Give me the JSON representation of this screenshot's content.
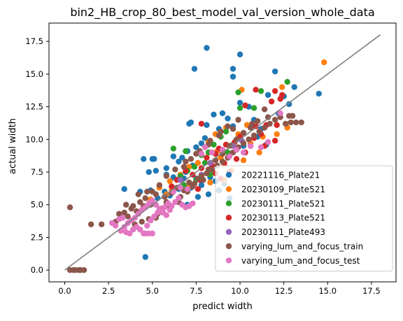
{
  "chart_data": {
    "type": "scatter",
    "title": "bin2_HB_crop_80_best_model_val_version_whole_data",
    "xlabel": "predict width",
    "ylabel": "actual width",
    "xlim": [
      -0.9,
      18.9
    ],
    "ylim": [
      -0.9,
      18.9
    ],
    "xticks": [
      0.0,
      2.5,
      5.0,
      7.5,
      10.0,
      12.5,
      15.0,
      17.5
    ],
    "yticks": [
      0.0,
      2.5,
      5.0,
      7.5,
      10.0,
      12.5,
      15.0,
      17.5
    ],
    "xtick_labels": [
      "0.0",
      "2.5",
      "5.0",
      "7.5",
      "10.0",
      "12.5",
      "15.0",
      "17.5"
    ],
    "ytick_labels": [
      "0.0",
      "2.5",
      "5.0",
      "7.5",
      "10.0",
      "12.5",
      "15.0",
      "17.5"
    ],
    "grid": false,
    "legend_position": "bottom-right",
    "reference_line": {
      "x": [
        0,
        18
      ],
      "y": [
        0,
        18
      ],
      "color": "#808080"
    },
    "series": [
      {
        "name": "20221116_Plate21",
        "color": "#1f77b4",
        "points": [
          [
            8.1,
            17.0
          ],
          [
            10.0,
            16.5
          ],
          [
            7.4,
            15.4
          ],
          [
            9.6,
            15.4
          ],
          [
            9.6,
            14.8
          ],
          [
            12.0,
            15.2
          ],
          [
            14.5,
            13.5
          ],
          [
            13.1,
            14.0
          ],
          [
            12.5,
            13.3
          ],
          [
            11.6,
            13.4
          ],
          [
            10.0,
            12.8
          ],
          [
            10.5,
            12.5
          ],
          [
            9.0,
            12.0
          ],
          [
            8.5,
            11.9
          ],
          [
            8.1,
            11.1
          ],
          [
            7.2,
            11.3
          ],
          [
            7.1,
            11.2
          ],
          [
            8.8,
            10.8
          ],
          [
            9.3,
            11.6
          ],
          [
            11.2,
            10.8
          ],
          [
            8.0,
            10.1
          ],
          [
            7.8,
            9.7
          ],
          [
            7.5,
            9.4
          ],
          [
            7.0,
            9.1
          ],
          [
            6.7,
            8.6
          ],
          [
            6.2,
            8.7
          ],
          [
            5.0,
            8.5
          ],
          [
            4.5,
            8.5
          ],
          [
            5.1,
            8.5
          ],
          [
            6.5,
            8.3
          ],
          [
            7.3,
            8.0
          ],
          [
            6.9,
            7.5
          ],
          [
            5.8,
            7.8
          ],
          [
            5.2,
            7.6
          ],
          [
            4.8,
            7.5
          ],
          [
            5.8,
            7.3
          ],
          [
            6.2,
            7.1
          ],
          [
            6.8,
            7.0
          ],
          [
            7.5,
            7.0
          ],
          [
            8.3,
            7.1
          ],
          [
            7.8,
            6.5
          ],
          [
            8.6,
            6.8
          ],
          [
            9.1,
            6.6
          ],
          [
            7.2,
            6.3
          ],
          [
            6.5,
            6.2
          ],
          [
            5.7,
            6.0
          ],
          [
            4.9,
            6.1
          ],
          [
            4.3,
            6.0
          ],
          [
            3.4,
            6.2
          ],
          [
            5.3,
            5.5
          ],
          [
            6.0,
            5.7
          ],
          [
            6.5,
            5.5
          ],
          [
            7.0,
            5.0
          ],
          [
            7.6,
            5.6
          ],
          [
            8.2,
            5.8
          ],
          [
            8.8,
            6.1
          ],
          [
            9.4,
            5.5
          ],
          [
            4.6,
            1.0
          ],
          [
            10.2,
            9.5
          ],
          [
            11.0,
            10.2
          ],
          [
            11.5,
            9.6
          ],
          [
            12.2,
            12.0
          ],
          [
            12.8,
            12.7
          ],
          [
            9.6,
            11.0
          ],
          [
            10.8,
            11.5
          ]
        ]
      },
      {
        "name": "20230109_Plate521",
        "color": "#ff7f0e",
        "points": [
          [
            14.8,
            15.9
          ],
          [
            12.4,
            14.0
          ],
          [
            10.1,
            13.8
          ],
          [
            9.2,
            10.9
          ],
          [
            10.4,
            11.1
          ],
          [
            11.3,
            10.2
          ],
          [
            12.1,
            10.4
          ],
          [
            12.7,
            10.9
          ],
          [
            9.9,
            10.4
          ],
          [
            9.6,
            9.6
          ],
          [
            8.7,
            9.1
          ],
          [
            8.2,
            9.8
          ],
          [
            8.9,
            8.6
          ],
          [
            9.1,
            8.1
          ],
          [
            10.2,
            8.4
          ],
          [
            11.1,
            9.0
          ],
          [
            7.6,
            8.2
          ],
          [
            7.1,
            7.9
          ],
          [
            6.6,
            7.3
          ],
          [
            7.1,
            6.4
          ],
          [
            8.3,
            6.7
          ],
          [
            9.1,
            6.9
          ],
          [
            6.0,
            6.8
          ],
          [
            5.4,
            6.3
          ],
          [
            6.1,
            6.1
          ],
          [
            5.8,
            5.8
          ],
          [
            4.9,
            5.4
          ],
          [
            9.5,
            7.6
          ],
          [
            10.6,
            9.7
          ],
          [
            8.6,
            10.4
          ]
        ]
      },
      {
        "name": "20230111_Plate521",
        "color": "#2ca02c",
        "points": [
          [
            12.7,
            14.4
          ],
          [
            11.2,
            13.7
          ],
          [
            9.9,
            13.6
          ],
          [
            10.0,
            12.4
          ],
          [
            10.8,
            12.4
          ],
          [
            9.2,
            10.6
          ],
          [
            8.9,
            10.2
          ],
          [
            8.5,
            9.6
          ],
          [
            9.6,
            9.6
          ],
          [
            9.3,
            9.0
          ],
          [
            8.2,
            9.0
          ],
          [
            6.9,
            9.1
          ],
          [
            6.2,
            9.3
          ],
          [
            7.8,
            8.8
          ],
          [
            8.0,
            8.2
          ],
          [
            7.4,
            7.9
          ],
          [
            7.0,
            7.6
          ],
          [
            6.6,
            7.2
          ],
          [
            7.5,
            6.9
          ],
          [
            6.8,
            6.5
          ],
          [
            8.3,
            7.3
          ]
        ]
      },
      {
        "name": "20230113_Plate521",
        "color": "#d62728",
        "points": [
          [
            12.0,
            13.7
          ],
          [
            10.9,
            13.8
          ],
          [
            12.3,
            13.1
          ],
          [
            11.8,
            12.9
          ],
          [
            12.4,
            13.4
          ],
          [
            10.3,
            12.6
          ],
          [
            10.9,
            11.0
          ],
          [
            11.5,
            11.1
          ],
          [
            12.1,
            11.1
          ],
          [
            10.0,
            10.2
          ],
          [
            10.8,
            10.1
          ],
          [
            11.2,
            10.4
          ],
          [
            9.7,
            9.8
          ],
          [
            9.2,
            9.6
          ],
          [
            8.8,
            9.3
          ],
          [
            10.6,
            9.5
          ],
          [
            11.4,
            9.5
          ],
          [
            12.0,
            9.9
          ],
          [
            8.6,
            8.9
          ],
          [
            8.1,
            8.6
          ],
          [
            9.1,
            8.2
          ],
          [
            9.8,
            8.5
          ],
          [
            10.3,
            9.0
          ],
          [
            8.4,
            8.0
          ],
          [
            7.8,
            7.8
          ],
          [
            8.6,
            7.4
          ],
          [
            7.3,
            7.3
          ],
          [
            6.9,
            7.6
          ],
          [
            7.7,
            6.9
          ],
          [
            6.4,
            6.9
          ],
          [
            7.6,
            6.2
          ],
          [
            6.1,
            6.4
          ],
          [
            8.9,
            7.0
          ],
          [
            9.4,
            7.5
          ],
          [
            7.8,
            11.2
          ]
        ]
      },
      {
        "name": "20230111_Plate493",
        "color": "#9467bd",
        "points": [
          [
            8.3,
            8.2
          ],
          [
            9.6,
            9.5
          ],
          [
            7.8,
            7.3
          ],
          [
            10.1,
            9.9
          ],
          [
            6.6,
            6.9
          ]
        ]
      },
      {
        "name": "varying_lum_and_focus_train",
        "color": "#8c564b",
        "points": [
          [
            0.3,
            4.8
          ],
          [
            0.3,
            0.0
          ],
          [
            0.6,
            0.0
          ],
          [
            0.9,
            0.0
          ],
          [
            1.1,
            0.0
          ],
          [
            0.5,
            0.0
          ],
          [
            0.8,
            0.0
          ],
          [
            1.5,
            3.5
          ],
          [
            2.1,
            3.5
          ],
          [
            2.9,
            3.7
          ],
          [
            3.4,
            4.4
          ],
          [
            3.6,
            4.1
          ],
          [
            3.8,
            4.7
          ],
          [
            4.1,
            4.5
          ],
          [
            4.5,
            4.9
          ],
          [
            4.9,
            5.0
          ],
          [
            5.3,
            4.3
          ],
          [
            5.5,
            4.7
          ],
          [
            5.8,
            5.2
          ],
          [
            4.0,
            3.5
          ],
          [
            4.4,
            3.7
          ],
          [
            3.1,
            4.3
          ],
          [
            4.7,
            6.0
          ],
          [
            5.2,
            5.8
          ],
          [
            5.7,
            5.6
          ],
          [
            6.1,
            5.9
          ],
          [
            6.4,
            6.3
          ],
          [
            6.8,
            6.1
          ],
          [
            7.1,
            6.7
          ],
          [
            7.3,
            6.4
          ],
          [
            7.6,
            7.0
          ],
          [
            7.9,
            6.9
          ],
          [
            8.1,
            7.4
          ],
          [
            8.4,
            7.7
          ],
          [
            8.7,
            8.0
          ],
          [
            9.0,
            8.3
          ],
          [
            9.3,
            8.6
          ],
          [
            9.6,
            9.0
          ],
          [
            9.9,
            9.4
          ],
          [
            10.2,
            9.7
          ],
          [
            10.5,
            10.0
          ],
          [
            10.8,
            10.3
          ],
          [
            11.1,
            10.6
          ],
          [
            11.4,
            10.9
          ],
          [
            11.7,
            11.2
          ],
          [
            12.0,
            11.5
          ],
          [
            12.3,
            11.7
          ],
          [
            12.6,
            11.2
          ],
          [
            12.9,
            11.3
          ],
          [
            13.2,
            11.3
          ],
          [
            13.5,
            11.3
          ],
          [
            12.8,
            11.8
          ],
          [
            11.6,
            11.7
          ],
          [
            10.7,
            11.2
          ],
          [
            9.6,
            10.8
          ],
          [
            8.8,
            10.3
          ],
          [
            8.2,
            9.6
          ],
          [
            7.5,
            8.9
          ],
          [
            6.9,
            8.3
          ],
          [
            6.3,
            7.7
          ],
          [
            5.8,
            7.2
          ],
          [
            5.4,
            6.5
          ],
          [
            5.0,
            6.0
          ],
          [
            4.6,
            5.5
          ],
          [
            4.3,
            5.2
          ],
          [
            3.9,
            4.9
          ],
          [
            6.6,
            5.6
          ],
          [
            7.0,
            6.0
          ],
          [
            7.4,
            6.6
          ],
          [
            7.8,
            7.2
          ],
          [
            8.2,
            7.7
          ],
          [
            8.6,
            8.4
          ],
          [
            9.0,
            8.9
          ],
          [
            9.4,
            9.5
          ],
          [
            9.8,
            10.0
          ],
          [
            10.2,
            10.5
          ],
          [
            10.6,
            10.9
          ],
          [
            11.0,
            11.4
          ],
          [
            6.0,
            4.9
          ],
          [
            6.5,
            5.2
          ],
          [
            5.6,
            4.4
          ],
          [
            4.8,
            3.9
          ],
          [
            5.2,
            4.0
          ],
          [
            3.5,
            5.0
          ],
          [
            4.2,
            5.8
          ],
          [
            6.8,
            7.9
          ],
          [
            7.2,
            8.5
          ],
          [
            7.7,
            9.1
          ],
          [
            8.3,
            9.9
          ],
          [
            8.9,
            10.6
          ],
          [
            9.3,
            11.0
          ],
          [
            9.9,
            11.5
          ],
          [
            11.4,
            12.3
          ],
          [
            13.0,
            11.8
          ]
        ]
      },
      {
        "name": "varying_lum_and_focus_test",
        "color": "#e377c2",
        "points": [
          [
            2.7,
            3.6
          ],
          [
            3.1,
            3.9
          ],
          [
            3.3,
            4.0
          ],
          [
            3.4,
            3.3
          ],
          [
            3.5,
            2.9
          ],
          [
            3.7,
            2.8
          ],
          [
            3.9,
            3.1
          ],
          [
            4.1,
            3.3
          ],
          [
            4.3,
            3.1
          ],
          [
            4.5,
            2.8
          ],
          [
            4.7,
            3.4
          ],
          [
            4.9,
            3.8
          ],
          [
            5.1,
            4.1
          ],
          [
            5.3,
            4.4
          ],
          [
            5.5,
            4.6
          ],
          [
            5.7,
            4.8
          ],
          [
            5.9,
            5.1
          ],
          [
            6.1,
            4.9
          ],
          [
            6.3,
            5.2
          ],
          [
            6.5,
            5.5
          ],
          [
            6.7,
            5.0
          ],
          [
            6.9,
            4.8
          ],
          [
            7.1,
            4.9
          ],
          [
            7.3,
            5.1
          ],
          [
            4.0,
            4.0
          ],
          [
            4.2,
            4.3
          ],
          [
            4.4,
            4.6
          ],
          [
            4.6,
            4.8
          ],
          [
            4.8,
            5.1
          ],
          [
            5.0,
            5.3
          ],
          [
            5.2,
            5.0
          ],
          [
            5.4,
            4.7
          ],
          [
            5.6,
            4.4
          ],
          [
            5.8,
            4.2
          ],
          [
            6.0,
            4.6
          ],
          [
            3.6,
            3.6
          ],
          [
            3.8,
            3.8
          ],
          [
            4.6,
            2.8
          ],
          [
            4.8,
            2.8
          ],
          [
            5.0,
            2.8
          ],
          [
            3.2,
            3.0
          ],
          [
            2.9,
            3.4
          ],
          [
            7.8,
            8.9
          ],
          [
            8.0,
            9.4
          ],
          [
            8.4,
            9.0
          ],
          [
            9.0,
            9.2
          ],
          [
            9.4,
            8.7
          ],
          [
            9.8,
            9.2
          ],
          [
            10.2,
            9.0
          ],
          [
            10.6,
            9.5
          ],
          [
            11.2,
            9.4
          ],
          [
            11.6,
            9.8
          ],
          [
            12.3,
            12.0
          ],
          [
            6.2,
            6.0
          ],
          [
            6.6,
            6.3
          ],
          [
            7.0,
            6.2
          ]
        ]
      }
    ]
  }
}
